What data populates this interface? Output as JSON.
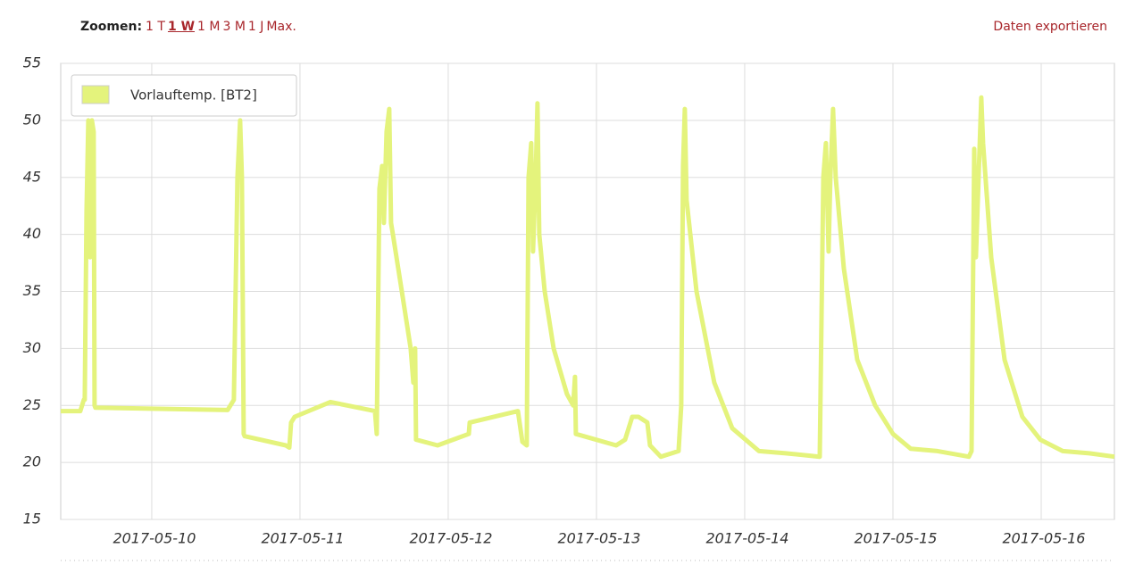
{
  "header": {
    "zoom_label": "Zoomen:",
    "zoom_options": [
      "1 T",
      "1 W",
      "1 M",
      "3 M",
      "1 J",
      "Max."
    ],
    "active_option": "1 W",
    "export": "Daten exportieren"
  },
  "chart_data": {
    "type": "line",
    "x": [
      9.386,
      9.518,
      9.542,
      9.548,
      9.56,
      9.572,
      9.584,
      9.596,
      9.608,
      9.614,
      9.62,
      10.512,
      10.554,
      10.578,
      10.596,
      10.608,
      10.62,
      10.627,
      10.904,
      10.928,
      10.94,
      10.964,
      11.205,
      11.506,
      11.518,
      11.536,
      11.554,
      11.566,
      11.584,
      11.602,
      11.614,
      11.627,
      11.687,
      11.747,
      11.765,
      11.777,
      11.783,
      11.928,
      12.139,
      12.145,
      12.47,
      12.5,
      12.53,
      12.542,
      12.56,
      12.572,
      12.59,
      12.602,
      12.614,
      12.651,
      12.711,
      12.801,
      12.843,
      12.855,
      12.861,
      13.133,
      13.193,
      13.241,
      13.283,
      13.343,
      13.361,
      13.434,
      13.554,
      13.572,
      13.584,
      13.596,
      13.608,
      13.675,
      13.795,
      13.916,
      14.096,
      14.277,
      14.506,
      14.53,
      14.548,
      14.566,
      14.578,
      14.596,
      14.614,
      14.669,
      14.759,
      14.88,
      15.0,
      15.12,
      15.301,
      15.512,
      15.53,
      15.548,
      15.56,
      15.578,
      15.596,
      15.608,
      15.663,
      15.753,
      15.873,
      15.994,
      16.145,
      16.325,
      16.494
    ],
    "series": [
      {
        "name": "Vorlauftemp. [BT2]",
        "color": "#e4f37c",
        "values": [
          24.5,
          24.5,
          25.5,
          25.5,
          42,
          50,
          38,
          50,
          49,
          25,
          24.8,
          24.6,
          25.5,
          45,
          50,
          45,
          22.5,
          22.3,
          21.5,
          21.3,
          23.5,
          24,
          25.3,
          24.5,
          22.5,
          44,
          46,
          41,
          49,
          51,
          41,
          40,
          35,
          30,
          27,
          30,
          22,
          21.5,
          22.5,
          23.5,
          24.5,
          21.8,
          21.5,
          45,
          48,
          38.5,
          45,
          51.5,
          40,
          35,
          30,
          26,
          25,
          27.5,
          22.5,
          21.5,
          22,
          24,
          24,
          23.5,
          21.5,
          20.5,
          21,
          25,
          46,
          51,
          43,
          35,
          27,
          23,
          21,
          20.8,
          20.5,
          45,
          48,
          38.5,
          45,
          51,
          45,
          37,
          29,
          25,
          22.5,
          21.2,
          21,
          20.5,
          21,
          47.5,
          38,
          45,
          52,
          48,
          38,
          29,
          24,
          22,
          21,
          20.8,
          20.5
        ]
      }
    ],
    "xlim": [
      9.386,
      16.494
    ],
    "xticks": [
      {
        "value": 10,
        "label": "2017-05-10"
      },
      {
        "value": 11,
        "label": "2017-05-11"
      },
      {
        "value": 12,
        "label": "2017-05-12"
      },
      {
        "value": 13,
        "label": "2017-05-13"
      },
      {
        "value": 14,
        "label": "2017-05-14"
      },
      {
        "value": 15,
        "label": "2017-05-15"
      },
      {
        "value": 16,
        "label": "2017-05-16"
      }
    ],
    "ylim": [
      15,
      55
    ],
    "yticks": [
      15,
      20,
      25,
      30,
      35,
      40,
      45,
      50,
      55
    ],
    "grid": true,
    "legend": "upper left"
  }
}
